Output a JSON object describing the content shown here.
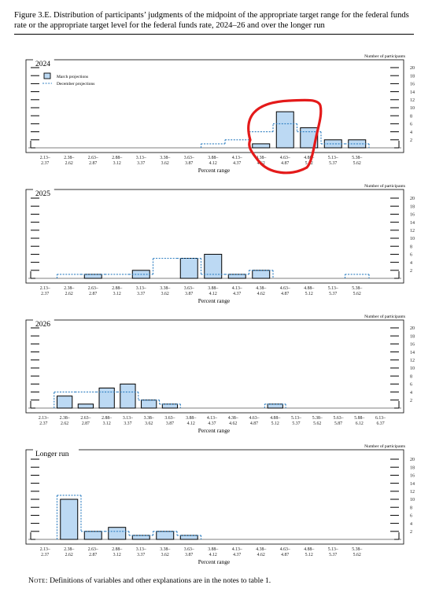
{
  "figure_title": "Figure 3.E. Distribution of participants’ judgments of the midpoint of the appropriate target range for the federal funds rate or the appropriate target level for the federal funds rate, 2024–26 and over the longer run",
  "note": {
    "lead": "Note:",
    "text": "Definitions of variables and other explanations are in the notes to table 1."
  },
  "colors": {
    "bar_fill": "#bcd9f3",
    "bar_edge": "#000000",
    "december_line": "#2f7fc1",
    "annotation": "#e41a1a"
  },
  "chart_data": [
    {
      "type": "bar",
      "title": "2024",
      "ylabel": "Number of participants",
      "xlabel": "Percent range",
      "ylim": [
        0,
        20
      ],
      "yticks": [
        2,
        4,
        6,
        8,
        10,
        12,
        14,
        16,
        18,
        20
      ],
      "grid": false,
      "legend": {
        "position": "top-left",
        "march": "March projections",
        "december": "December projections"
      },
      "categories": [
        [
          "2.13–",
          "2.37"
        ],
        [
          "2.38–",
          "2.62"
        ],
        [
          "2.63–",
          "2.87"
        ],
        [
          "2.88–",
          "3.12"
        ],
        [
          "3.13–",
          "3.37"
        ],
        [
          "3.38–",
          "3.62"
        ],
        [
          "3.63–",
          "3.87"
        ],
        [
          "3.88–",
          "4.12"
        ],
        [
          "4.13–",
          "4.37"
        ],
        [
          "4.38–",
          "4.62"
        ],
        [
          "4.63–",
          "4.87"
        ],
        [
          "4.88–",
          "5.12"
        ],
        [
          "5.13–",
          "5.37"
        ],
        [
          "5.38–",
          "5.62"
        ]
      ],
      "series": [
        {
          "name": "March projections",
          "values": [
            0,
            0,
            0,
            0,
            0,
            0,
            0,
            0,
            0,
            1,
            9,
            5,
            2,
            2
          ]
        },
        {
          "name": "December projections",
          "values": [
            0,
            0,
            0,
            0,
            0,
            0,
            0,
            1,
            2,
            4,
            6,
            4,
            1,
            1
          ]
        }
      ],
      "annotations": [
        {
          "type": "hand-drawn circle",
          "around": [
            "4.38–4.62",
            "4.63–4.87",
            "4.88–5.12"
          ]
        }
      ]
    },
    {
      "type": "bar",
      "title": "2025",
      "ylabel": "Number of participants",
      "xlabel": "Percent range",
      "ylim": [
        0,
        20
      ],
      "yticks": [
        2,
        4,
        6,
        8,
        10,
        12,
        14,
        16,
        18,
        20
      ],
      "grid": false,
      "categories": [
        [
          "2.13–",
          "2.37"
        ],
        [
          "2.38–",
          "2.62"
        ],
        [
          "2.63–",
          "2.87"
        ],
        [
          "2.88–",
          "3.12"
        ],
        [
          "3.13–",
          "3.37"
        ],
        [
          "3.38–",
          "3.62"
        ],
        [
          "3.63–",
          "3.87"
        ],
        [
          "3.88–",
          "4.12"
        ],
        [
          "4.13–",
          "4.37"
        ],
        [
          "4.38–",
          "4.62"
        ],
        [
          "4.63–",
          "4.87"
        ],
        [
          "4.88–",
          "5.12"
        ],
        [
          "5.13–",
          "5.37"
        ],
        [
          "5.38–",
          "5.62"
        ]
      ],
      "series": [
        {
          "name": "March projections",
          "values": [
            0,
            0,
            1,
            0,
            2,
            0,
            5,
            6,
            1,
            2,
            0,
            0,
            0,
            0
          ]
        },
        {
          "name": "December projections",
          "values": [
            0,
            1,
            1,
            1,
            1,
            5,
            5,
            1,
            1,
            2,
            0,
            0,
            0,
            1
          ]
        }
      ]
    },
    {
      "type": "bar",
      "title": "2026",
      "ylabel": "Number of participants",
      "xlabel": "Percent range",
      "ylim": [
        0,
        20
      ],
      "yticks": [
        2,
        4,
        6,
        8,
        10,
        12,
        14,
        16,
        18,
        20
      ],
      "grid": false,
      "categories": [
        [
          "2.13–",
          "2.37"
        ],
        [
          "2.38–",
          "2.62"
        ],
        [
          "2.63–",
          "2.87"
        ],
        [
          "2.88–",
          "3.12"
        ],
        [
          "3.13–",
          "3.37"
        ],
        [
          "3.38–",
          "3.62"
        ],
        [
          "3.63–",
          "3.87"
        ],
        [
          "3.88–",
          "4.12"
        ],
        [
          "4.13–",
          "4.37"
        ],
        [
          "4.38–",
          "4.62"
        ],
        [
          "4.63–",
          "4.87"
        ],
        [
          "4.88–",
          "5.12"
        ],
        [
          "5.13–",
          "5.37"
        ],
        [
          "5.38–",
          "5.62"
        ],
        [
          "5.63–",
          "5.87"
        ],
        [
          "5.88–",
          "6.12"
        ],
        [
          "6.13–",
          "6.37"
        ]
      ],
      "series": [
        {
          "name": "March projections",
          "values": [
            0,
            3,
            1,
            5,
            6,
            2,
            1,
            0,
            0,
            0,
            0,
            1,
            0,
            0,
            0,
            0,
            0
          ]
        },
        {
          "name": "December projections",
          "values": [
            0,
            4,
            4,
            4,
            4,
            2,
            1,
            0,
            0,
            0,
            0,
            1,
            0,
            0,
            0,
            0,
            0
          ]
        }
      ]
    },
    {
      "type": "bar",
      "title": "Longer run",
      "ylabel": "Number of participants",
      "xlabel": "Percent range",
      "ylim": [
        0,
        20
      ],
      "yticks": [
        2,
        4,
        6,
        8,
        10,
        12,
        14,
        16,
        18,
        20
      ],
      "grid": false,
      "categories": [
        [
          "2.13–",
          "2.37"
        ],
        [
          "2.38–",
          "2.62"
        ],
        [
          "2.63–",
          "2.87"
        ],
        [
          "2.88–",
          "3.12"
        ],
        [
          "3.13–",
          "3.37"
        ],
        [
          "3.38–",
          "3.62"
        ],
        [
          "3.63–",
          "3.87"
        ],
        [
          "3.88–",
          "4.12"
        ],
        [
          "4.13–",
          "4.37"
        ],
        [
          "4.38–",
          "4.62"
        ],
        [
          "4.63–",
          "4.87"
        ],
        [
          "4.88–",
          "5.12"
        ],
        [
          "5.13–",
          "5.37"
        ],
        [
          "5.38–",
          "5.62"
        ]
      ],
      "series": [
        {
          "name": "March projections",
          "values": [
            0,
            10,
            2,
            3,
            1,
            2,
            1,
            0,
            0,
            0,
            0,
            0,
            0,
            0
          ]
        },
        {
          "name": "December projections",
          "values": [
            0,
            11,
            2,
            2,
            1,
            2,
            1,
            0,
            0,
            0,
            0,
            0,
            0,
            0
          ]
        }
      ]
    }
  ]
}
